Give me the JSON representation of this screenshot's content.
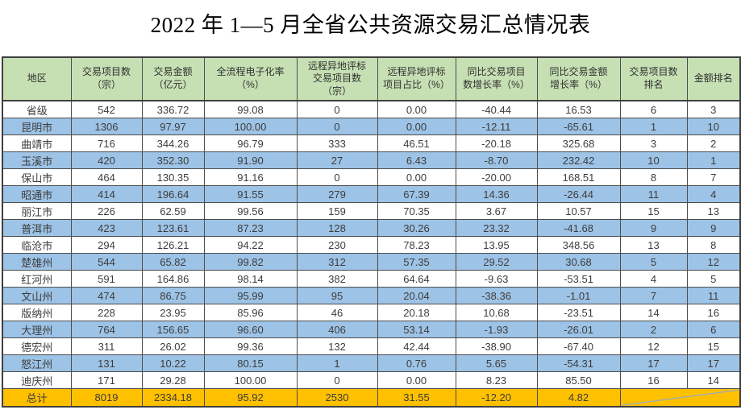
{
  "title": "2022 年 1—5 月全省公共资源交易汇总情况表",
  "colors": {
    "header_bg": "#c6e0b4",
    "row_bg": "#ffffff",
    "row_alt_bg": "#9dc3e6",
    "total_bg": "#ffc000",
    "border": "#4d4d4d",
    "text": "#3d3d3d",
    "diagonal_line": "#9aabba"
  },
  "chart_data": {
    "type": "table",
    "title": "2022 年 1—5 月全省公共资源交易汇总情况表",
    "columns": [
      "地区",
      "交易项目数（宗）",
      "交易金额（亿元）",
      "全流程电子化率（%）",
      "远程异地评标交易项目数（宗）",
      "远程异地评标项目占比（%）",
      "同比交易项目数增长率（%）",
      "同比交易金额增长率（%）",
      "交易项目数排名",
      "金额排名"
    ],
    "headers_display": [
      "地区",
      "交易项目数\n（宗）",
      "交易金额\n（亿元）",
      "全流程电子化率\n（%）",
      "远程异地评标\n交易项目数\n（宗）",
      "远程异地评标\n项目占比（%）",
      "同比交易项目\n数增长率（%）",
      "同比交易金额\n增长率（%）",
      "交易项目数\n排名",
      "金额排名"
    ],
    "rows": [
      [
        "省级",
        "542",
        "336.72",
        "99.08",
        "0",
        "0.00",
        "-40.44",
        "16.53",
        "6",
        "3"
      ],
      [
        "昆明市",
        "1306",
        "97.97",
        "100.00",
        "0",
        "0.00",
        "-12.11",
        "-65.61",
        "1",
        "10"
      ],
      [
        "曲靖市",
        "716",
        "344.26",
        "96.79",
        "333",
        "46.51",
        "-20.18",
        "325.68",
        "3",
        "2"
      ],
      [
        "玉溪市",
        "420",
        "352.30",
        "91.90",
        "27",
        "6.43",
        "-8.70",
        "232.42",
        "10",
        "1"
      ],
      [
        "保山市",
        "464",
        "130.35",
        "91.16",
        "0",
        "0.00",
        "-20.00",
        "168.51",
        "8",
        "7"
      ],
      [
        "昭通市",
        "414",
        "196.64",
        "91.55",
        "279",
        "67.39",
        "14.36",
        "-26.44",
        "11",
        "4"
      ],
      [
        "丽江市",
        "226",
        "62.59",
        "99.56",
        "159",
        "70.35",
        "3.67",
        "10.57",
        "15",
        "13"
      ],
      [
        "普洱市",
        "423",
        "123.61",
        "87.23",
        "128",
        "30.26",
        "23.32",
        "-41.68",
        "9",
        "9"
      ],
      [
        "临沧市",
        "294",
        "126.21",
        "94.22",
        "230",
        "78.23",
        "13.95",
        "348.56",
        "13",
        "8"
      ],
      [
        "楚雄州",
        "544",
        "65.82",
        "99.82",
        "312",
        "57.35",
        "29.52",
        "30.68",
        "5",
        "12"
      ],
      [
        "红河州",
        "591",
        "164.86",
        "98.14",
        "382",
        "64.64",
        "-9.63",
        "-53.51",
        "4",
        "5"
      ],
      [
        "文山州",
        "474",
        "86.75",
        "95.99",
        "95",
        "20.04",
        "-38.36",
        "-1.01",
        "7",
        "11"
      ],
      [
        "版纳州",
        "228",
        "23.95",
        "85.96",
        "46",
        "20.18",
        "10.68",
        "-23.51",
        "14",
        "16"
      ],
      [
        "大理州",
        "764",
        "156.65",
        "96.60",
        "406",
        "53.14",
        "-1.93",
        "-26.01",
        "2",
        "6"
      ],
      [
        "德宏州",
        "311",
        "26.02",
        "99.36",
        "132",
        "42.44",
        "-38.90",
        "-67.40",
        "12",
        "15"
      ],
      [
        "怒江州",
        "131",
        "10.22",
        "80.15",
        "1",
        "0.76",
        "5.65",
        "-54.31",
        "17",
        "17"
      ],
      [
        "迪庆州",
        "171",
        "29.28",
        "100.00",
        "0",
        "0.00",
        "8.23",
        "85.50",
        "16",
        "14"
      ]
    ],
    "total_row": [
      "总计",
      "8019",
      "2334.18",
      "95.92",
      "2530",
      "31.55",
      "-12.20",
      "4.82"
    ]
  }
}
